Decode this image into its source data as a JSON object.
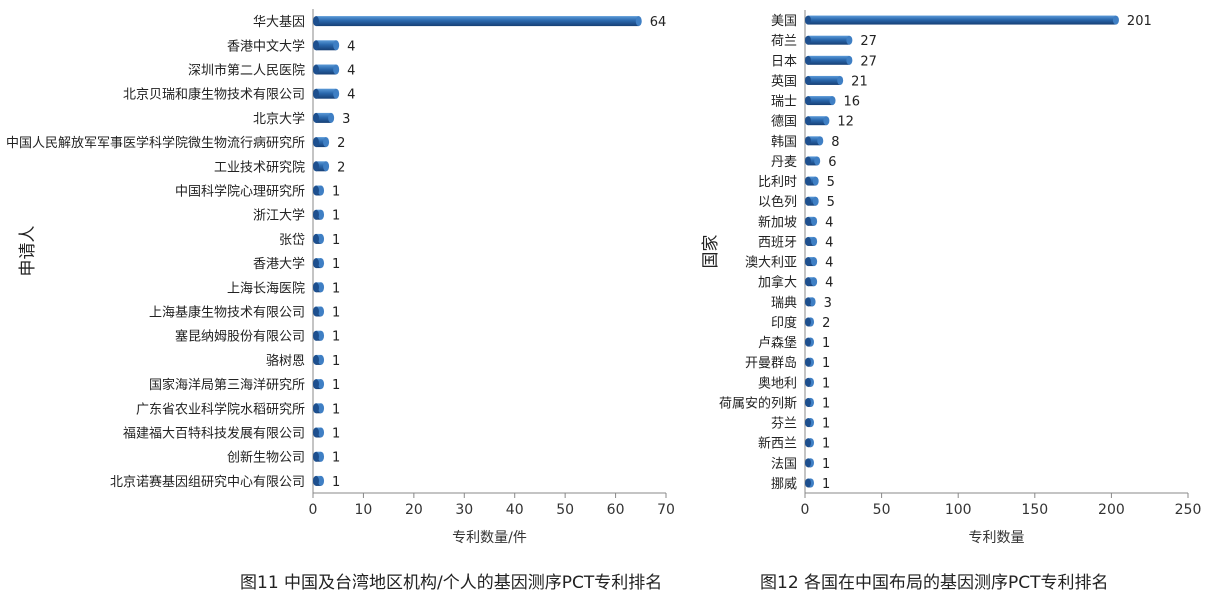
{
  "captions": {
    "left": "图11  中国及台湾地区机构/个人的基因测序PCT专利排名",
    "right": "图12  各国在中国布局的基因测序PCT专利排名"
  },
  "colors": {
    "bar_main": "#2563a8",
    "bar_light": "#4f8fd1",
    "bar_dark": "#153f73",
    "axis": "#888888",
    "text": "#222222"
  },
  "chart_data": [
    {
      "type": "bar",
      "orientation": "horizontal",
      "ylabel": "申请人",
      "xlabel": "专利数量/件",
      "xlim": [
        0,
        70
      ],
      "xticks": [
        0,
        10,
        20,
        30,
        40,
        50,
        60,
        70
      ],
      "grid": false,
      "categories": [
        "华大基因",
        "香港中文大学",
        "深圳市第二人民医院",
        "北京贝瑞和康生物技术有限公司",
        "北京大学",
        "中国人民解放军军事医学科学院微生物流行病研究所",
        "工业技术研究院",
        "中国科学院心理研究所",
        "浙江大学",
        "张岱",
        "香港大学",
        "上海长海医院",
        "上海基康生物技术有限公司",
        "塞昆纳姆股份有限公司",
        "骆树恩",
        "国家海洋局第三海洋研究所",
        "广东省农业科学院水稻研究所",
        "福建福大百特科技发展有限公司",
        "创新生物公司",
        "北京诺赛基因组研究中心有限公司"
      ],
      "values": [
        64,
        4,
        4,
        4,
        3,
        2,
        2,
        1,
        1,
        1,
        1,
        1,
        1,
        1,
        1,
        1,
        1,
        1,
        1,
        1
      ]
    },
    {
      "type": "bar",
      "orientation": "horizontal",
      "ylabel": "国家",
      "xlabel": "专利数量",
      "xlim": [
        0,
        250
      ],
      "xticks": [
        0,
        50,
        100,
        150,
        200,
        250
      ],
      "grid": false,
      "categories": [
        "美国",
        "荷兰",
        "日本",
        "英国",
        "瑞士",
        "德国",
        "韩国",
        "丹麦",
        "比利时",
        "以色列",
        "新加坡",
        "西班牙",
        "澳大利亚",
        "加拿大",
        "瑞典",
        "印度",
        "卢森堡",
        "开曼群岛",
        "奥地利",
        "荷属安的列斯",
        "芬兰",
        "新西兰",
        "法国",
        "挪威"
      ],
      "values": [
        201,
        27,
        27,
        21,
        16,
        12,
        8,
        6,
        5,
        5,
        4,
        4,
        4,
        4,
        3,
        2,
        1,
        1,
        1,
        1,
        1,
        1,
        1,
        1
      ]
    }
  ]
}
